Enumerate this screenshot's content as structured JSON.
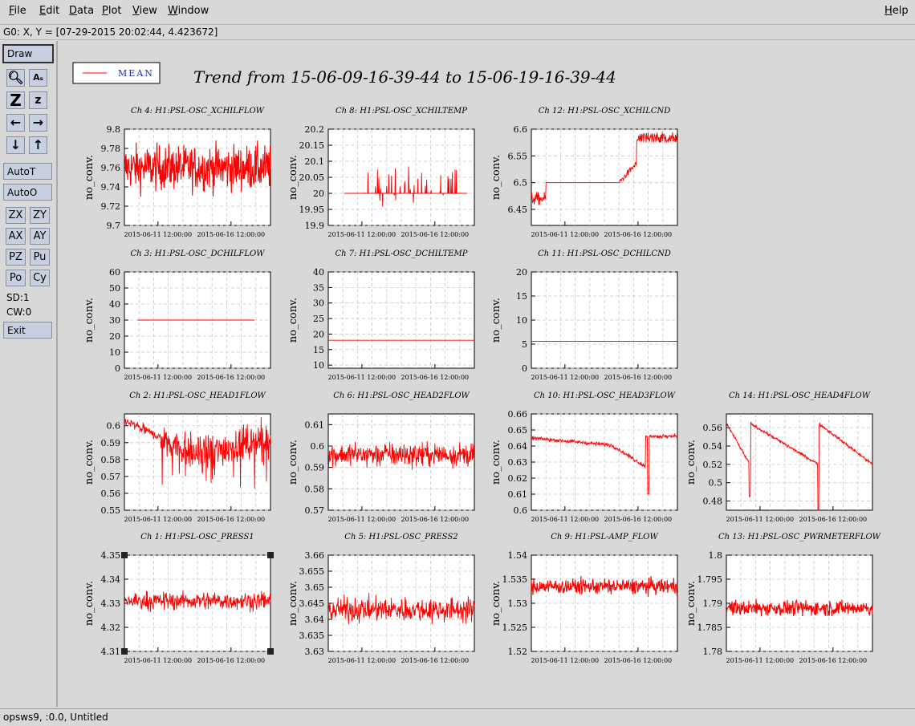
{
  "menu": {
    "file": "File",
    "edit": "Edit",
    "data": "Data",
    "plot": "Plot",
    "view": "View",
    "window": "Window",
    "help": "Help"
  },
  "status": "G0: X, Y = [07-29-2015 20:02:44, 4.423672]",
  "footer": "opsws9, :0.0, Untitled",
  "toolbar": {
    "draw": "Draw",
    "autot": "AutoT",
    "autoo": "AutoO",
    "zx": "ZX",
    "zy": "ZY",
    "ax": "AX",
    "ay": "AY",
    "pz": "PZ",
    "pu": "Pu",
    "po": "Po",
    "cy": "Cy",
    "sd": "SD:1",
    "cw": "CW:0",
    "exit": "Exit",
    "icons": [
      "magnify-icon",
      "text-size-icon",
      "zoom-big-icon",
      "zoom-small-icon",
      "arrow-left-icon",
      "arrow-right-icon",
      "arrow-down-icon",
      "arrow-up-icon"
    ]
  },
  "legend": {
    "label": "MEAN",
    "color": "#ff0000"
  },
  "title": "Trend from 15-06-09-16-39-44 to 15-06-19-16-39-44",
  "ylabel": "no_conv.",
  "xticks": [
    "2015-06-11 12:00:00",
    "2015-06-16 12:00:00"
  ],
  "chart_data": [
    {
      "type": "line",
      "title": "Ch 4: H1:PSL-OSC_XCHILFLOW",
      "ylim": [
        9.7,
        9.8
      ],
      "yticks": [
        "9.8",
        "9.78",
        "9.76",
        "9.74",
        "9.72",
        "9.7"
      ],
      "mean": 9.76,
      "noise": 0.022,
      "style": "band"
    },
    {
      "type": "line",
      "title": "Ch 8: H1:PSL-OSC_XCHILTEMP",
      "ylim": [
        19.9,
        20.2
      ],
      "yticks": [
        "20.2",
        "20.15",
        "20.1",
        "20.05",
        "20",
        "19.95",
        "19.9"
      ],
      "mean": 20.0,
      "noise": 0.04,
      "style": "spikes"
    },
    {
      "type": "line",
      "title": "Ch 12: H1:PSL-OSC_XCHILCND",
      "ylim": [
        6.42,
        6.6
      ],
      "yticks": [
        "6.6",
        "6.55",
        "6.5",
        "6.45"
      ],
      "mean": 6.5,
      "noise": 0.02,
      "style": "step"
    },
    {
      "type": "line",
      "title": "Ch 3: H1:PSL-OSC_DCHILFLOW",
      "ylim": [
        0,
        60
      ],
      "yticks": [
        "60",
        "50",
        "40",
        "30",
        "20",
        "10",
        "0"
      ],
      "mean": 30,
      "noise": 0,
      "style": "flatshort"
    },
    {
      "type": "line",
      "title": "Ch 7: H1:PSL-OSC_DCHILTEMP",
      "ylim": [
        9,
        40
      ],
      "yticks": [
        "40",
        "35",
        "30",
        "25",
        "20",
        "15",
        "10"
      ],
      "mean": 18,
      "noise": 0,
      "style": "flat"
    },
    {
      "type": "line",
      "title": "Ch 11: H1:PSL-OSC_DCHILCND",
      "ylim": [
        0,
        20
      ],
      "yticks": [
        "20",
        "15",
        "10",
        "5",
        "0"
      ],
      "mean": 5.6,
      "noise": 0,
      "style": "flat"
    },
    {
      "type": "line",
      "title": "Ch 2: H1:PSL-OSC_HEAD1FLOW",
      "ylim": [
        0.55,
        0.607
      ],
      "yticks": [
        "0.6",
        "0.59",
        "0.58",
        "0.57",
        "0.56",
        "0.55"
      ],
      "mean": 0.585,
      "noise": 0.008,
      "style": "dip"
    },
    {
      "type": "line",
      "title": "Ch 6: H1:PSL-OSC_HEAD2FLOW",
      "ylim": [
        0.57,
        0.615
      ],
      "yticks": [
        "0.61",
        "0.6",
        "0.59",
        "0.58",
        "0.57"
      ],
      "mean": 0.596,
      "noise": 0.006,
      "style": "noisy"
    },
    {
      "type": "line",
      "title": "Ch 10: H1:PSL-OSC_HEAD3FLOW",
      "ylim": [
        0.6,
        0.66
      ],
      "yticks": [
        "0.66",
        "0.65",
        "0.64",
        "0.63",
        "0.62",
        "0.61",
        "0.6"
      ],
      "mean": 0.642,
      "noise": 0.002,
      "style": "smooth3"
    },
    {
      "type": "line",
      "title": "Ch 14: H1:PSL-OSC_HEAD4FLOW",
      "ylim": [
        0.47,
        0.575
      ],
      "yticks": [
        "0.56",
        "0.54",
        "0.52",
        "0.5",
        "0.48"
      ],
      "mean": 0.54,
      "noise": 0.003,
      "style": "smooth4"
    },
    {
      "type": "line",
      "title": "Ch 1: H1:PSL-OSC_PRESS1",
      "ylim": [
        4.31,
        4.35
      ],
      "yticks": [
        "4.35",
        "4.34",
        "4.33",
        "4.32",
        "4.31"
      ],
      "mean": 4.331,
      "noise": 0.004,
      "style": "noisy",
      "selected": true
    },
    {
      "type": "line",
      "title": "Ch 5: H1:PSL-OSC_PRESS2",
      "ylim": [
        3.63,
        3.66
      ],
      "yticks": [
        "3.66",
        "3.655",
        "3.65",
        "3.645",
        "3.64",
        "3.635",
        "3.63"
      ],
      "mean": 3.643,
      "noise": 0.004,
      "style": "noisy"
    },
    {
      "type": "line",
      "title": "Ch 9: H1:PSL-AMP_FLOW",
      "ylim": [
        1.52,
        1.54
      ],
      "yticks": [
        "1.54",
        "1.535",
        "1.53",
        "1.525",
        "1.52"
      ],
      "mean": 1.5335,
      "noise": 0.0015,
      "style": "band"
    },
    {
      "type": "line",
      "title": "Ch 13: H1:PSL-OSC_PWRMETERFLOW",
      "ylim": [
        1.78,
        1.8
      ],
      "yticks": [
        "1.8",
        "1.795",
        "1.79",
        "1.785",
        "1.78"
      ],
      "mean": 1.789,
      "noise": 0.0015,
      "style": "band"
    }
  ]
}
